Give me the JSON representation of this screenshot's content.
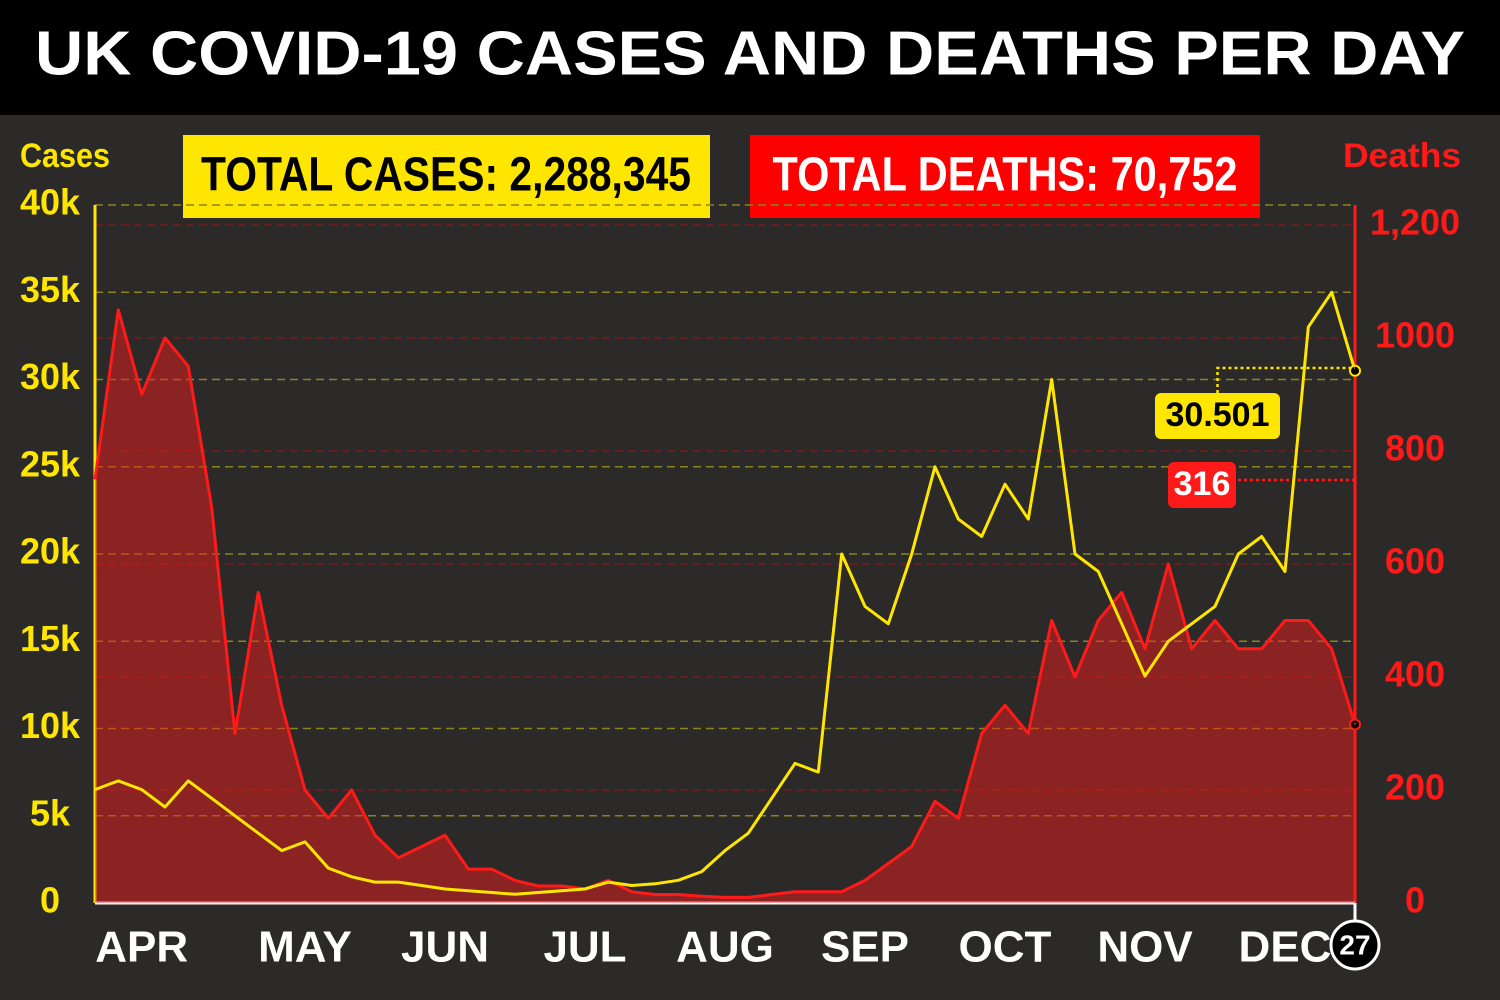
{
  "chart_data": {
    "type": "line",
    "title": "UK COVID-19 CASES AND DEATHS PER DAY",
    "y_label": "Cases",
    "y2_label": "Deaths",
    "annotations": [
      "TOTAL CASES: 2,288,345",
      "TOTAL DEATHS: 70,752"
    ],
    "categories": [
      null,
      null,
      "APR",
      null,
      null,
      null,
      null,
      null,
      null,
      "MAY",
      null,
      null,
      null,
      null,
      null,
      "JUN",
      null,
      null,
      null,
      null,
      null,
      "JUL",
      null,
      null,
      null,
      null,
      null,
      "AUG",
      null,
      null,
      null,
      null,
      null,
      "SEP",
      null,
      null,
      null,
      null,
      null,
      "OCT",
      null,
      null,
      null,
      null,
      null,
      "NOV",
      null,
      null,
      null,
      null,
      null,
      "DEC",
      null,
      null,
      "27"
    ],
    "ylim": [
      0,
      40000
    ],
    "yticks": [
      0,
      {
        "value": 5000,
        "label": "5k"
      },
      {
        "value": 10000,
        "label": "10k"
      },
      {
        "value": 15000,
        "label": "15k"
      },
      {
        "value": 20000,
        "label": "20k"
      },
      {
        "value": 25000,
        "label": "25k"
      },
      {
        "value": 30000,
        "label": "30k"
      },
      {
        "value": 35000,
        "label": "35k"
      },
      {
        "value": 40000,
        "label": "40k"
      }
    ],
    "y2lim": [
      0,
      1200
    ],
    "y2ticks": [
      0,
      200,
      400,
      600,
      800,
      1000,
      {
        "value": 1200,
        "label": "1,200"
      }
    ],
    "grid": true,
    "series": [
      {
        "name": "Cases",
        "color": "#ffe600",
        "fill": false,
        "values": [
          6500,
          7000,
          6500,
          5500,
          7000,
          6000,
          5000,
          4000,
          3000,
          3500,
          2000,
          1500,
          1200,
          1200,
          1000,
          800,
          700,
          600,
          500,
          600,
          700,
          800,
          1200,
          1000,
          1100,
          1300,
          1800,
          3000,
          4000,
          6000,
          8000,
          7500,
          20000,
          17000,
          16000,
          20000,
          25000,
          22000,
          21000,
          24000,
          22000,
          30000,
          20000,
          19000,
          16000,
          13000,
          15000,
          16000,
          17000,
          20000,
          21000,
          19000,
          33000,
          35000,
          30501
        ],
        "value_labels": [
          null,
          null,
          null,
          null,
          null,
          null,
          null,
          null,
          null,
          null,
          null,
          null,
          null,
          null,
          null,
          null,
          null,
          null,
          null,
          null,
          null,
          null,
          null,
          null,
          null,
          null,
          null,
          null,
          null,
          null,
          null,
          null,
          null,
          null,
          null,
          null,
          null,
          null,
          null,
          null,
          null,
          null,
          null,
          null,
          null,
          null,
          null,
          null,
          null,
          null,
          null,
          null,
          null,
          null,
          "30.501"
        ]
      },
      {
        "name": "Deaths",
        "color": "#ff1a1a",
        "fill": true,
        "axis": "y2",
        "values": [
          750,
          1050,
          900,
          1000,
          950,
          700,
          300,
          550,
          350,
          200,
          150,
          200,
          120,
          80,
          100,
          120,
          60,
          60,
          40,
          30,
          30,
          25,
          40,
          20,
          15,
          15,
          12,
          10,
          10,
          15,
          20,
          20,
          20,
          40,
          70,
          100,
          180,
          150,
          300,
          350,
          300,
          500,
          400,
          500,
          550,
          450,
          600,
          450,
          500,
          450,
          450,
          500,
          500,
          450,
          316
        ],
        "value_labels": [
          null,
          null,
          null,
          null,
          null,
          null,
          null,
          null,
          null,
          null,
          null,
          null,
          null,
          null,
          null,
          null,
          null,
          null,
          null,
          null,
          null,
          null,
          null,
          null,
          null,
          null,
          null,
          null,
          null,
          null,
          null,
          null,
          null,
          null,
          null,
          null,
          null,
          null,
          null,
          null,
          null,
          null,
          null,
          null,
          null,
          null,
          null,
          null,
          null,
          null,
          null,
          null,
          null,
          null,
          "316"
        ]
      }
    ]
  }
}
